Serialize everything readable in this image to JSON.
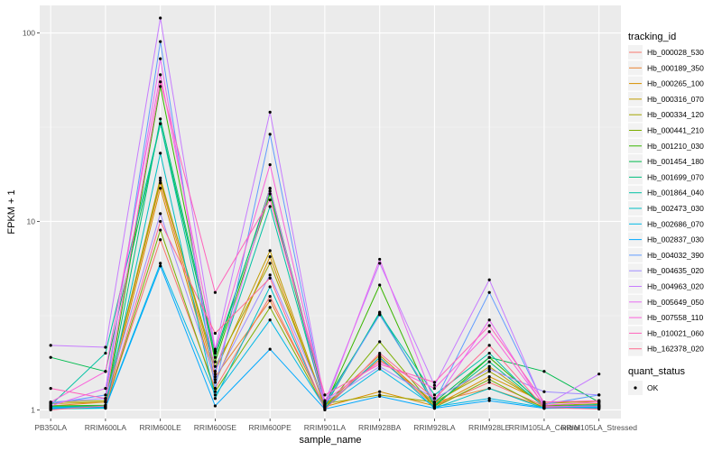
{
  "chart_data": {
    "type": "line",
    "xlabel": "sample_name",
    "ylabel": "FPKM + 1",
    "y_scale": "log10",
    "ylim": [
      0.9,
      140
    ],
    "y_ticks": [
      1,
      10,
      100
    ],
    "y_tick_labels": [
      "1",
      "10",
      "100"
    ],
    "grid": true,
    "legend_position": "right",
    "categories": [
      "PB350LA",
      "RRIM600LA",
      "RRIM600LE",
      "RRIM600SE",
      "RRIM600PE",
      "RRIM901LA",
      "RRIM928BA",
      "RRIM928LA",
      "RRIM928LE",
      "RRIM105LA_Control",
      "RRIM105LA_Stressed"
    ],
    "legend_title": "tracking_id",
    "series": [
      {
        "name": "Hb_000028_530",
        "color": "#F8766D",
        "values": [
          1.02,
          1.05,
          8.0,
          1.3,
          4.0,
          1.03,
          1.9,
          1.05,
          1.4,
          1.05,
          1.04
        ]
      },
      {
        "name": "Hb_000189_350",
        "color": "#EA8331",
        "values": [
          1.05,
          1.1,
          16.0,
          1.5,
          3.8,
          1.05,
          1.85,
          1.1,
          1.3,
          1.04,
          1.05
        ]
      },
      {
        "name": "Hb_000265_100",
        "color": "#D89000",
        "values": [
          1.03,
          1.04,
          15.0,
          1.4,
          6.5,
          1.04,
          1.25,
          1.05,
          1.5,
          1.1,
          1.1
        ]
      },
      {
        "name": "Hb_000316_070",
        "color": "#C09B00",
        "values": [
          1.08,
          1.1,
          17.0,
          1.6,
          7.0,
          1.06,
          1.95,
          1.07,
          1.7,
          1.05,
          1.08
        ]
      },
      {
        "name": "Hb_000334_120",
        "color": "#A3A500",
        "values": [
          1.1,
          1.12,
          16.5,
          1.7,
          6.0,
          1.08,
          1.2,
          1.1,
          1.6,
          1.08,
          1.12
        ]
      },
      {
        "name": "Hb_000441_210",
        "color": "#7CAE00",
        "values": [
          1.02,
          1.03,
          9.0,
          1.25,
          3.5,
          1.02,
          2.3,
          1.03,
          1.45,
          1.02,
          1.03
        ]
      },
      {
        "name": "Hb_001210_030",
        "color": "#39B600",
        "values": [
          1.05,
          1.06,
          52.0,
          1.8,
          14.0,
          1.05,
          4.6,
          1.04,
          1.9,
          1.06,
          1.06
        ]
      },
      {
        "name": "Hb_001454_180",
        "color": "#00BB4E",
        "values": [
          1.9,
          1.6,
          33.0,
          1.9,
          15.0,
          1.1,
          3.2,
          1.1,
          1.9,
          1.6,
          1.1
        ]
      },
      {
        "name": "Hb_001699_070",
        "color": "#00BF7D",
        "values": [
          1.04,
          1.05,
          35.0,
          2.0,
          14.5,
          1.04,
          3.3,
          1.06,
          1.8,
          1.04,
          1.05
        ]
      },
      {
        "name": "Hb_001864_040",
        "color": "#00C1A3",
        "values": [
          1.06,
          2.0,
          33.0,
          1.6,
          12.0,
          1.06,
          3.25,
          1.2,
          2.0,
          1.03,
          1.07
        ]
      },
      {
        "name": "Hb_002473_030",
        "color": "#00BFC4",
        "values": [
          1.01,
          1.02,
          23.0,
          1.15,
          4.5,
          1.02,
          1.9,
          1.02,
          1.3,
          1.02,
          1.02
        ]
      },
      {
        "name": "Hb_002686_070",
        "color": "#00B8E5",
        "values": [
          1.03,
          1.04,
          6.0,
          1.2,
          3.0,
          1.03,
          1.65,
          1.04,
          1.15,
          1.03,
          1.04
        ]
      },
      {
        "name": "Hb_002837_030",
        "color": "#00A9FF",
        "values": [
          1.02,
          1.03,
          5.8,
          1.05,
          2.1,
          1.01,
          1.18,
          1.02,
          1.12,
          1.02,
          1.03
        ]
      },
      {
        "name": "Hb_004032_390",
        "color": "#619CFF",
        "values": [
          1.08,
          1.2,
          90.0,
          1.3,
          29.0,
          1.07,
          3.2,
          1.1,
          4.2,
          1.07,
          1.2
        ]
      },
      {
        "name": "Hb_004635_020",
        "color": "#9F8CFF",
        "values": [
          1.1,
          1.15,
          11.0,
          1.45,
          5.2,
          1.1,
          1.7,
          1.15,
          1.65,
          1.25,
          1.2
        ]
      },
      {
        "name": "Hb_004963_020",
        "color": "#C77CFF",
        "values": [
          2.2,
          2.15,
          120.0,
          2.1,
          38.0,
          1.1,
          6.0,
          1.35,
          4.9,
          1.05,
          1.55
        ]
      },
      {
        "name": "Hb_005649_050",
        "color": "#E76BF3",
        "values": [
          1.05,
          1.3,
          73.0,
          1.55,
          15.0,
          1.05,
          6.3,
          1.1,
          3.0,
          1.04,
          1.05
        ]
      },
      {
        "name": "Hb_007558_110",
        "color": "#FA62DB",
        "values": [
          1.1,
          1.6,
          60.0,
          2.05,
          20.0,
          1.12,
          1.8,
          1.3,
          2.6,
          1.06,
          1.1
        ]
      },
      {
        "name": "Hb_010021_060",
        "color": "#FF62BC",
        "values": [
          1.3,
          1.15,
          55.0,
          4.2,
          13.0,
          1.2,
          1.75,
          1.4,
          2.8,
          1.1,
          1.12
        ]
      },
      {
        "name": "Hb_162378_020",
        "color": "#FF6C91",
        "values": [
          1.0,
          1.05,
          10.0,
          2.55,
          5.0,
          1.0,
          2.0,
          1.15,
          2.2,
          1.03,
          1.01
        ]
      }
    ],
    "point_legend_title": "quant_status",
    "point_legend_items": [
      "OK"
    ]
  }
}
